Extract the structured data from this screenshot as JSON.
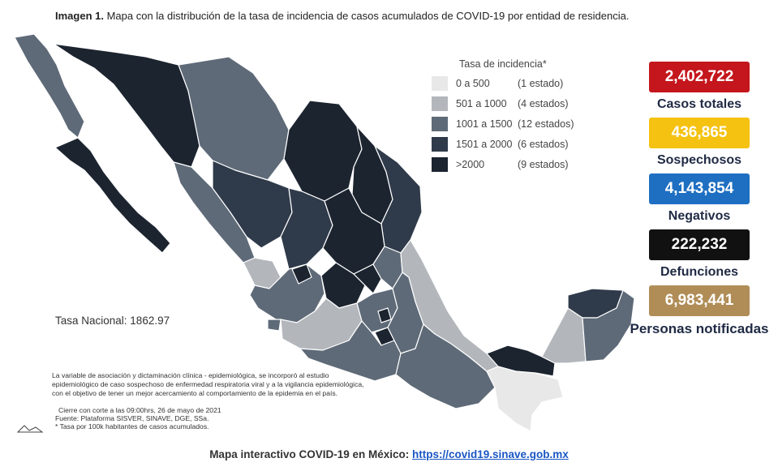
{
  "header": {
    "title_bold": "Imagen 1.",
    "title_rest": " Mapa con la distribución de la tasa de incidencia de casos acumulados de COVID-19 por entidad de residencia."
  },
  "legend": {
    "title": "Tasa de incidencia*",
    "items": [
      {
        "range": "0 a    500",
        "count": "(1 estado)",
        "color": "#e8e8e8"
      },
      {
        "range": "501 a  1000",
        "count": "(4 estados)",
        "color": "#b3b7bc"
      },
      {
        "range": "1001 a  1500",
        "count": "(12 estados)",
        "color": "#5e6a78"
      },
      {
        "range": "1501 a  2000",
        "count": "(6 estados)",
        "color": "#2f3a4a"
      },
      {
        "range": ">2000",
        "count": "(9 estados)",
        "color": "#1c2430"
      }
    ]
  },
  "stats": [
    {
      "value": "2,402,722",
      "label": "Casos totales",
      "color": "#c4161c"
    },
    {
      "value": "436,865",
      "label": "Sospechosos",
      "color": "#f5c211"
    },
    {
      "value": "4,143,854",
      "label": "Negativos",
      "color": "#1e6fc2"
    },
    {
      "value": "222,232",
      "label": "Defunciones",
      "color": "#111111"
    },
    {
      "value": "6,983,441",
      "label": "Personas notificadas",
      "color": "#b08d57"
    }
  ],
  "national_rate": "Tasa Nacional: 1862.97",
  "notes": {
    "line1": "La variable de asociación y dictaminación clínica - epidemiológica, se incorporó al estudio",
    "line2": "epidemiológico de caso sospechoso de enfermedad respiratoria viral y a la vigilancia epidemiológica,",
    "line3": "con el objetivo de tener un mejor acercamiento al comportamiento de la epidemia en el país.",
    "cut1": "Cierre con corte a las 09:00hrs, 26 de mayo de 2021",
    "cut2": "Fuente: Plataforma SISVER, SINAVE, DGE, SSa.",
    "cut3": "* Tasa por 100k habitantes de casos acumulados."
  },
  "footer": {
    "text": "Mapa interactivo COVID-19 en México: ",
    "link": "https://covid19.sinave.gob.mx"
  },
  "map_colors": {
    "very_dark": "#1c2430",
    "dark": "#2f3a4a",
    "medium": "#5e6a78",
    "light": "#b3b7bc",
    "lightest": "#e8e8e8",
    "border": "#ffffff"
  }
}
